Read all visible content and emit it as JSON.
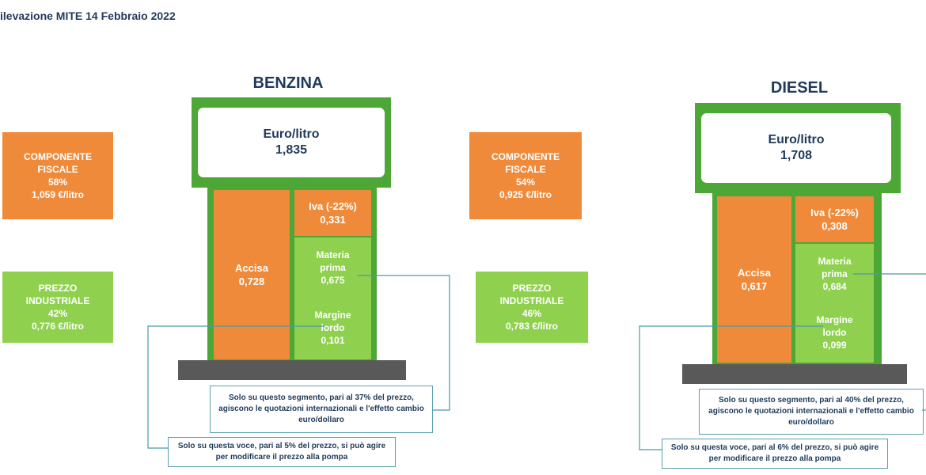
{
  "title": "ilevazione MITE 14 Febbraio 2022",
  "colors": {
    "fiscal": "#ef8a3a",
    "industrial": "#8fd14f",
    "frame": "#4ca737",
    "text": "#1f3a5a"
  },
  "fuels": [
    {
      "name": "BENZINA",
      "head_label": "Euro/litro",
      "head_value": "1,835",
      "fiscal": {
        "l1": "COMPONENTE",
        "l2": "FISCALE",
        "pct": "58%",
        "value": "1,059 €/litro"
      },
      "industrial": {
        "l1": "PREZZO",
        "l2": "INDUSTRIALE",
        "pct": "42%",
        "value": "0,776 €/litro"
      },
      "accisa": {
        "label": "Accisa",
        "value": "0,728"
      },
      "iva": {
        "label": "Iva (-22%)",
        "value": "0,331"
      },
      "materia": {
        "l1": "Materia",
        "l2": "prima",
        "value": "0,675"
      },
      "margine": {
        "l1": "Margine",
        "l2": "lordo",
        "value": "0,101"
      },
      "note1": {
        "l1": "Solo su questo segmento, pari al 37% del prezzo,",
        "l2": "agiscono le quotazioni internazionali e l'effetto cambio",
        "l3": "euro/dollaro"
      },
      "note2": {
        "l1": "Solo su questa voce, pari al 5% del prezzo, si può agire",
        "l2": "per modificare il prezzo alla pompa"
      }
    },
    {
      "name": "DIESEL",
      "head_label": "Euro/litro",
      "head_value": "1,708",
      "fiscal": {
        "l1": "COMPONENTE",
        "l2": "FISCALE",
        "pct": "54%",
        "value": "0,925 €/litro"
      },
      "industrial": {
        "l1": "PREZZO",
        "l2": "INDUSTRIALE",
        "pct": "46%",
        "value": "0,783 €/litro"
      },
      "accisa": {
        "label": "Accisa",
        "value": "0,617"
      },
      "iva": {
        "label": "Iva (-22%)",
        "value": "0,308"
      },
      "materia": {
        "l1": "Materia",
        "l2": "prima",
        "value": "0,684"
      },
      "margine": {
        "l1": "Margine",
        "l2": "lordo",
        "value": "0,099"
      },
      "note1": {
        "l1": "Solo su questo segmento, pari al 40% del prezzo,",
        "l2": "agiscono le quotazioni internazionali e l'effetto cambio",
        "l3": "euro/dollaro"
      },
      "note2": {
        "l1": "Solo su questa voce, pari al 6% del prezzo, si può agire",
        "l2": "per modificare il prezzo alla pompa"
      }
    }
  ],
  "chart_data": {
    "type": "bar",
    "title": "",
    "categories": [
      "BENZINA",
      "DIESEL"
    ],
    "series": [
      {
        "name": "Accisa",
        "values": [
          0.728,
          0.617
        ]
      },
      {
        "name": "Iva (-22%)",
        "values": [
          0.331,
          0.308
        ]
      },
      {
        "name": "Materia prima",
        "values": [
          0.675,
          0.684
        ]
      },
      {
        "name": "Margine lordo",
        "values": [
          0.101,
          0.099
        ]
      }
    ],
    "totals": [
      1.835,
      1.708
    ],
    "fiscal_share_pct": [
      58,
      54
    ],
    "industrial_share_pct": [
      42,
      46
    ]
  }
}
